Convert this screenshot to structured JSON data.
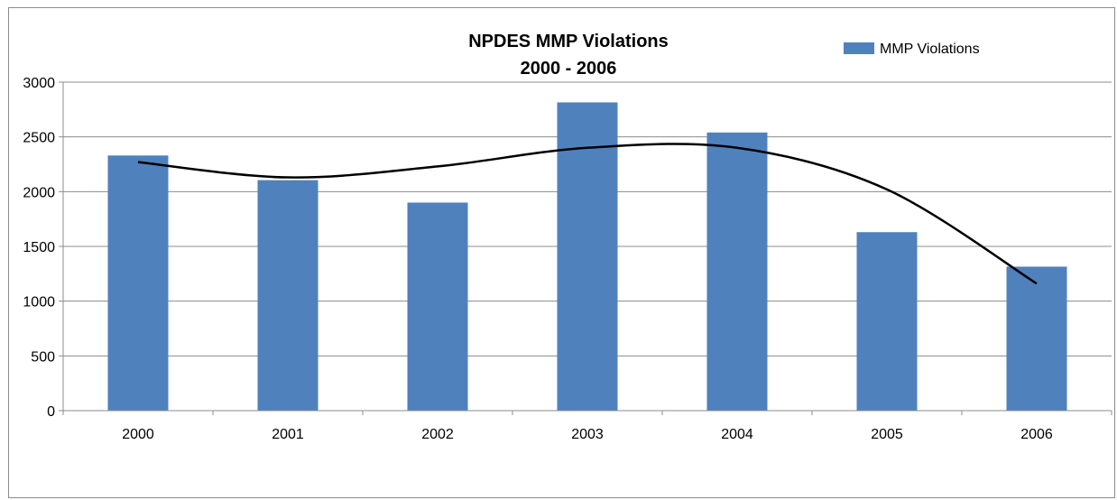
{
  "chart_data": {
    "type": "bar",
    "title_lines": [
      "NPDES MMP Violations",
      "2000 -  2006"
    ],
    "categories": [
      "2000",
      "2001",
      "2002",
      "2003",
      "2004",
      "2005",
      "2006"
    ],
    "series": [
      {
        "name": "MMP Violations",
        "values": [
          2330,
          2105,
          1900,
          2815,
          2540,
          1630,
          1315
        ],
        "color": "#4f81bd"
      }
    ],
    "trendline": {
      "type": "polynomial",
      "color": "#000000",
      "values": [
        2270,
        2130,
        2230,
        2400,
        2400,
        2020,
        1160
      ]
    },
    "xlabel": "",
    "ylabel": "",
    "ylim": [
      0,
      3000
    ],
    "yticks": [
      0,
      500,
      1000,
      1500,
      2000,
      2500,
      3000
    ],
    "grid": true,
    "legend": "top-right"
  }
}
